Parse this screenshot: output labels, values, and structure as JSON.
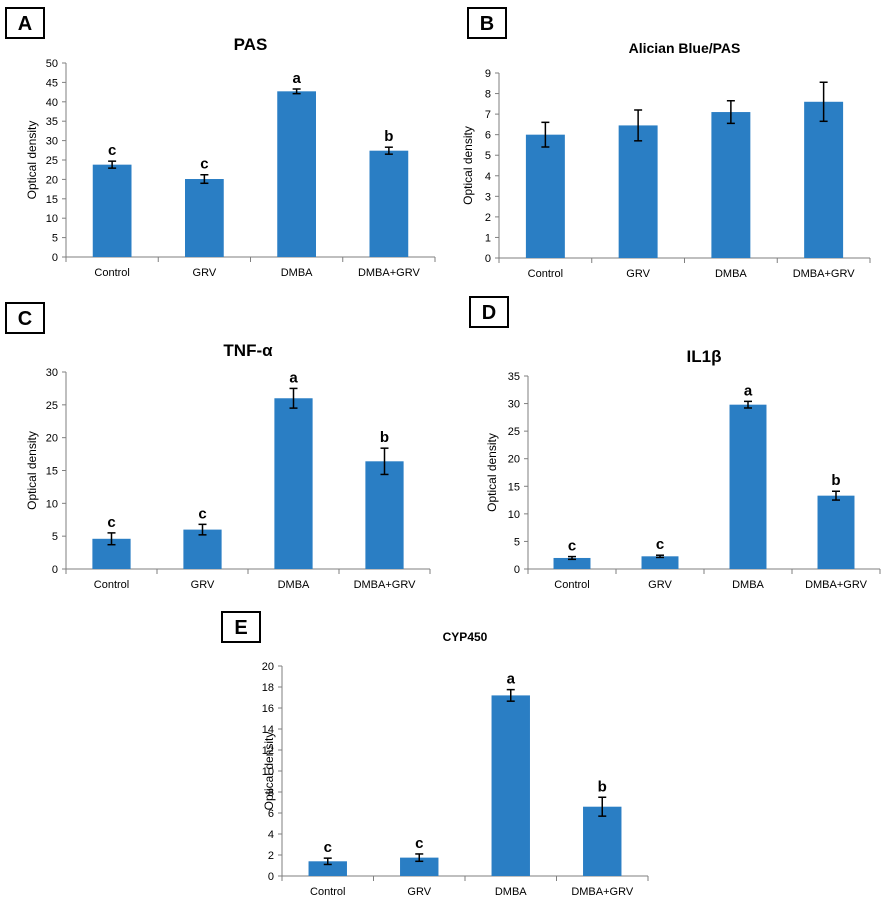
{
  "chart_data": [
    {
      "panel": "A",
      "type": "bar",
      "title": "PAS",
      "ylabel": "Optical density",
      "xlabel": "",
      "categories": [
        "Control",
        "GRV",
        "DMBA",
        "DMBA+GRV"
      ],
      "values": [
        23.8,
        20.1,
        42.7,
        27.4
      ],
      "errors": [
        0.9,
        1.1,
        0.6,
        0.9
      ],
      "significance": [
        "c",
        "c",
        "a",
        "b"
      ],
      "ylim": [
        0,
        50
      ],
      "yticks": [
        0,
        5,
        10,
        15,
        20,
        25,
        30,
        35,
        40,
        45,
        50
      ],
      "bar_color": "#2a7ec4"
    },
    {
      "panel": "B",
      "type": "bar",
      "title": "Alician Blue/PAS",
      "ylabel": "Optical density",
      "xlabel": "",
      "categories": [
        "Control",
        "GRV",
        "DMBA",
        "DMBA+GRV"
      ],
      "values": [
        6.0,
        6.45,
        7.1,
        7.6
      ],
      "errors": [
        0.6,
        0.75,
        0.55,
        0.95
      ],
      "significance": [
        "",
        "",
        "",
        ""
      ],
      "ylim": [
        0,
        9
      ],
      "yticks": [
        0,
        1,
        2,
        3,
        4,
        5,
        6,
        7,
        8,
        9
      ],
      "bar_color": "#2a7ec4"
    },
    {
      "panel": "C",
      "type": "bar",
      "title": "TNF-α",
      "ylabel": "Optical density",
      "xlabel": "",
      "categories": [
        "Control",
        "GRV",
        "DMBA",
        "DMBA+GRV"
      ],
      "values": [
        4.6,
        6.0,
        26.0,
        16.4
      ],
      "errors": [
        0.9,
        0.8,
        1.5,
        2.0
      ],
      "significance": [
        "c",
        "c",
        "a",
        "b"
      ],
      "ylim": [
        0,
        30
      ],
      "yticks": [
        0,
        5,
        10,
        15,
        20,
        25,
        30
      ],
      "bar_color": "#2a7ec4"
    },
    {
      "panel": "D",
      "type": "bar",
      "title": "IL1β",
      "ylabel": "Optical density",
      "xlabel": "",
      "categories": [
        "Control",
        "GRV",
        "DMBA",
        "DMBA+GRV"
      ],
      "values": [
        2.0,
        2.3,
        29.8,
        13.3
      ],
      "errors": [
        0.25,
        0.2,
        0.6,
        0.8
      ],
      "significance": [
        "c",
        "c",
        "a",
        "b"
      ],
      "ylim": [
        0,
        35
      ],
      "yticks": [
        0,
        5,
        10,
        15,
        20,
        25,
        30,
        35
      ],
      "bar_color": "#2a7ec4"
    },
    {
      "panel": "E",
      "type": "bar",
      "title": "CYP450",
      "ylabel": "Optical density",
      "xlabel": "",
      "categories": [
        "Control",
        "GRV",
        "DMBA",
        "DMBA+GRV"
      ],
      "values": [
        1.4,
        1.75,
        17.2,
        6.6
      ],
      "errors": [
        0.3,
        0.35,
        0.55,
        0.9
      ],
      "significance": [
        "c",
        "c",
        "a",
        "b"
      ],
      "ylim": [
        0,
        20
      ],
      "yticks": [
        0,
        2,
        4,
        6,
        8,
        10,
        12,
        14,
        16,
        18,
        20
      ],
      "bar_color": "#2a7ec4"
    }
  ]
}
